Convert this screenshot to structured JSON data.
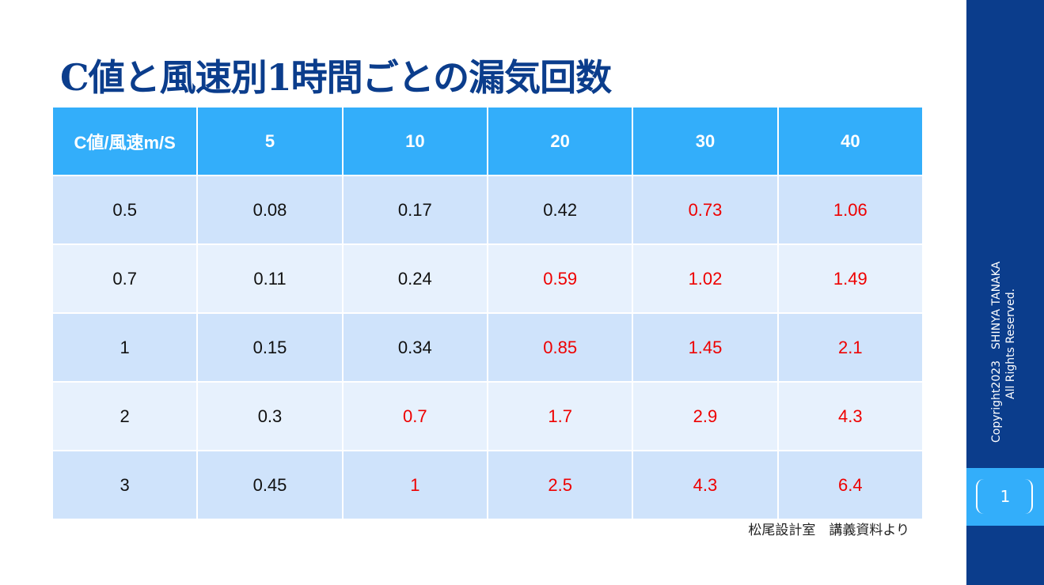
{
  "title": "C値と風速別1時間ごとの漏気回数",
  "table": {
    "headers": [
      "C値/風速m/S",
      "5",
      "10",
      "20",
      "30",
      "40"
    ],
    "rows": [
      [
        "0.5",
        "0.08",
        "0.17",
        "0.42",
        "0.73",
        "1.06"
      ],
      [
        "0.7",
        "0.11",
        "0.24",
        "0.59",
        "1.02",
        "1.49"
      ],
      [
        "1",
        "0.15",
        "0.34",
        "0.85",
        "1.45",
        "2.1"
      ],
      [
        "2",
        "0.3",
        "0.7",
        "1.7",
        "2.9",
        "4.3"
      ],
      [
        "3",
        "0.45",
        "1",
        "2.5",
        "4.3",
        "6.4"
      ]
    ],
    "highlight_color": "#ee0000"
  },
  "source": "松尾設計室　講義資料より",
  "copyright": {
    "line1": "Copyright2023　SHINYA TANAKA",
    "line2": "All Rights Reserved."
  },
  "page_number": "1",
  "colors": {
    "title": "#0b3d8c",
    "header_bg": "#33aefa",
    "sidebar": "#0b3d8c"
  }
}
